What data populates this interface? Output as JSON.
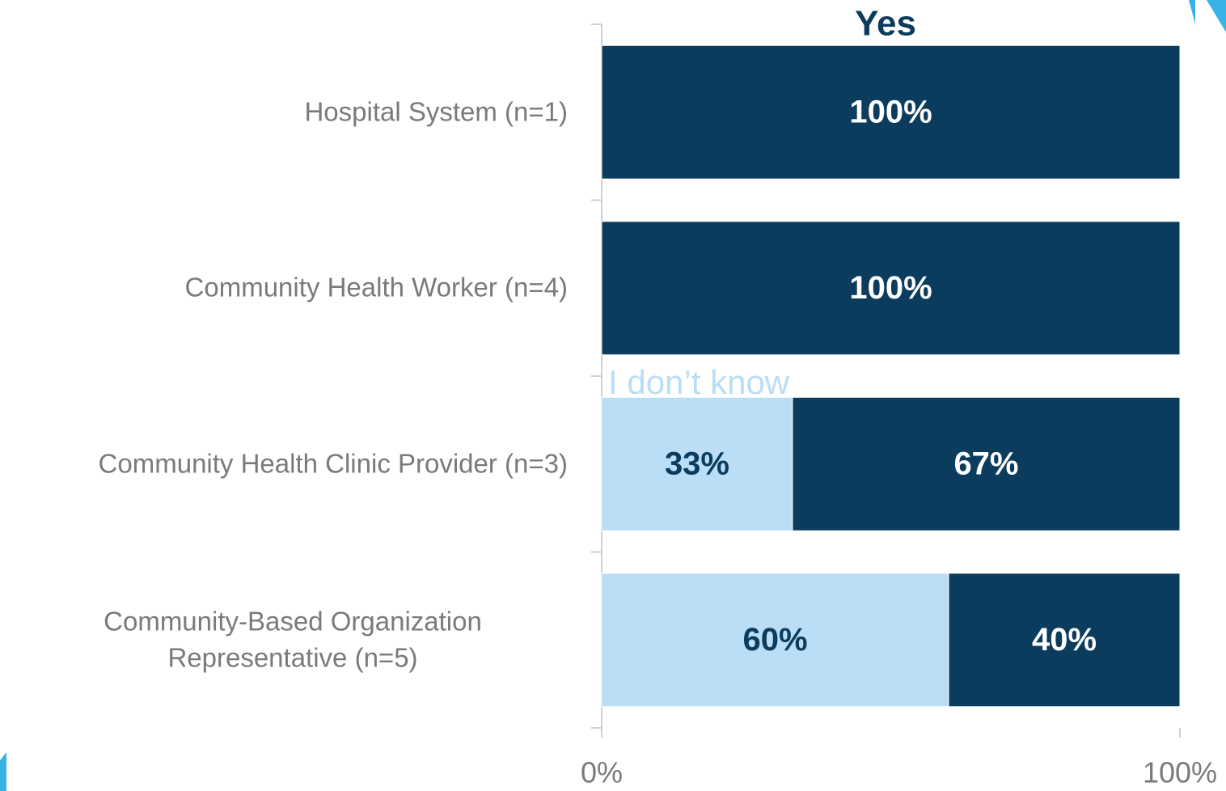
{
  "chart_data": {
    "type": "stacked-bar-horizontal",
    "categories": [
      "Hospital System (n=1)",
      "Community Health Worker (n=4)",
      "Community Health Clinic Provider (n=3)",
      "Community-Based Organization Representative (n=5)"
    ],
    "series": [
      {
        "name": "I don’t know",
        "color": "#b9def6",
        "values": [
          0,
          0,
          33,
          60
        ],
        "value_labels": [
          null,
          null,
          "33%",
          "60%"
        ],
        "label_color": "#0b3c5d"
      },
      {
        "name": "Yes",
        "color": "#0b3c5d",
        "values": [
          100,
          100,
          67,
          40
        ],
        "value_labels": [
          "100%",
          "100%",
          "67%",
          "40%"
        ],
        "label_color": "#ffffff"
      }
    ],
    "xlim": [
      0,
      100
    ],
    "xticks": [
      {
        "value": 0,
        "label": "0%"
      },
      {
        "value": 100,
        "label": "100%"
      }
    ]
  }
}
